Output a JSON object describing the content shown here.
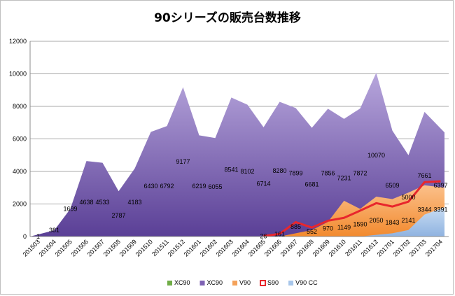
{
  "chart_data": {
    "type": "area",
    "title": "90シリーズの販売台数推移",
    "xlabel": "",
    "ylabel": "",
    "ylim": [
      0,
      12000
    ],
    "yticks": [
      0,
      2000,
      4000,
      6000,
      8000,
      10000,
      12000
    ],
    "grid": true,
    "legend_position": "bottom",
    "categories": [
      "201503",
      "201504",
      "201505",
      "201506",
      "201507",
      "201508",
      "201509",
      "201510",
      "201511",
      "201512",
      "201601",
      "201602",
      "201603",
      "201604",
      "201605",
      "201606",
      "201607",
      "201608",
      "201609",
      "201610",
      "201611",
      "201612",
      "201701",
      "201702",
      "201703",
      "201704"
    ],
    "series": [
      {
        "name": "XC90",
        "kind": "area",
        "color": "#70ad47",
        "values": [
          0,
          0,
          0,
          0,
          0,
          0,
          0,
          0,
          0,
          0,
          0,
          0,
          0,
          0,
          0,
          0,
          0,
          0,
          0,
          0,
          0,
          0,
          0,
          0,
          0,
          0
        ]
      },
      {
        "name": "XC90",
        "kind": "area",
        "color": "#7e62b3",
        "values": [
          1,
          381,
          1699,
          4638,
          4533,
          2787,
          4183,
          6430,
          6792,
          9177,
          6219,
          6055,
          8541,
          8102,
          6714,
          8280,
          7899,
          6681,
          7856,
          7231,
          7872,
          10070,
          6509,
          5000,
          7661,
          6397
        ]
      },
      {
        "name": "V90",
        "kind": "area",
        "color": "#f4a25a",
        "values": [
          0,
          0,
          0,
          0,
          0,
          0,
          0,
          0,
          0,
          0,
          0,
          0,
          0,
          0,
          0,
          0,
          200,
          400,
          900,
          2200,
          1700,
          2450,
          2300,
          2700,
          3150,
          3000
        ]
      },
      {
        "name": "S90",
        "kind": "line",
        "color": "#e8262c",
        "values": [
          null,
          null,
          null,
          null,
          null,
          null,
          null,
          null,
          null,
          null,
          null,
          null,
          null,
          null,
          26,
          161,
          885,
          552,
          970,
          1149,
          1590,
          2050,
          1843,
          2141,
          3344,
          3391
        ]
      },
      {
        "name": "V90 CC",
        "kind": "area",
        "color": "#a7c6ea",
        "values": [
          0,
          0,
          0,
          0,
          0,
          0,
          0,
          0,
          0,
          0,
          0,
          0,
          0,
          0,
          0,
          0,
          0,
          0,
          0,
          0,
          0,
          100,
          200,
          400,
          1350,
          1800
        ]
      }
    ],
    "labels": [
      {
        "cat": 0,
        "text": "1",
        "y": 1
      },
      {
        "cat": 1,
        "text": "381",
        "y": 381
      },
      {
        "cat": 2,
        "text": "1699",
        "y": 1699
      },
      {
        "cat": 3,
        "text": "4638",
        "y": 2100
      },
      {
        "cat": 4,
        "text": "4533",
        "y": 2100
      },
      {
        "cat": 5,
        "text": "2787",
        "y": 1300
      },
      {
        "cat": 6,
        "text": "4183",
        "y": 2100
      },
      {
        "cat": 7,
        "text": "6430",
        "y": 3100
      },
      {
        "cat": 8,
        "text": "6792",
        "y": 3100
      },
      {
        "cat": 9,
        "text": "9177",
        "y": 4600
      },
      {
        "cat": 10,
        "text": "6219",
        "y": 3100
      },
      {
        "cat": 11,
        "text": "6055",
        "y": 3050
      },
      {
        "cat": 12,
        "text": "8541",
        "y": 4100
      },
      {
        "cat": 13,
        "text": "8102",
        "y": 4000
      },
      {
        "cat": 14,
        "text": "6714",
        "y": 3250
      },
      {
        "cat": 15,
        "text": "8280",
        "y": 4050
      },
      {
        "cat": 16,
        "text": "7899",
        "y": 3900
      },
      {
        "cat": 17,
        "text": "6681",
        "y": 3200
      },
      {
        "cat": 18,
        "text": "7856",
        "y": 3900
      },
      {
        "cat": 19,
        "text": "7231",
        "y": 3600
      },
      {
        "cat": 20,
        "text": "7872",
        "y": 3900
      },
      {
        "cat": 21,
        "text": "10070",
        "y": 5000
      },
      {
        "cat": 22,
        "text": "6509",
        "y": 3150
      },
      {
        "cat": 23,
        "text": "5000",
        "y": 2400
      },
      {
        "cat": 24,
        "text": "7661",
        "y": 3750
      },
      {
        "cat": 25,
        "text": "6397",
        "y": 3150
      },
      {
        "cat": 14,
        "text": "26",
        "y": 26
      },
      {
        "cat": 15,
        "text": "161",
        "y": 161
      },
      {
        "cat": 16,
        "text": "885",
        "y": 600
      },
      {
        "cat": 17,
        "text": "552",
        "y": 300
      },
      {
        "cat": 18,
        "text": "970",
        "y": 500
      },
      {
        "cat": 19,
        "text": "1149",
        "y": 550
      },
      {
        "cat": 20,
        "text": "1590",
        "y": 750
      },
      {
        "cat": 21,
        "text": "2050",
        "y": 1000
      },
      {
        "cat": 22,
        "text": "1843",
        "y": 850
      },
      {
        "cat": 23,
        "text": "2141",
        "y": 1000
      },
      {
        "cat": 24,
        "text": "3344",
        "y": 1650
      },
      {
        "cat": 25,
        "text": "3391",
        "y": 1650
      }
    ]
  }
}
